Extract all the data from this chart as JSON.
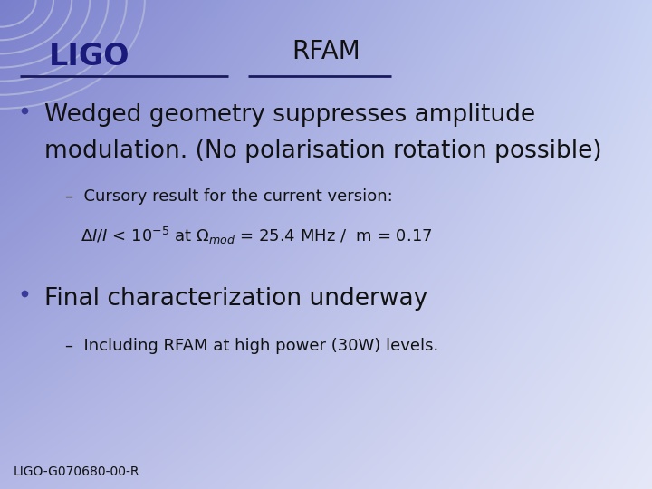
{
  "title": "RFAM",
  "ligo_text": "LIGO",
  "separator_color": "#1a1a5e",
  "bullet_color": "#3a3a99",
  "bullet1_main_line1": "Wedged geometry suppresses amplitude",
  "bullet1_main_line2": "modulation. (No polarisation rotation possible)",
  "bullet1_sub_line1": "–  Cursory result for the current version:",
  "bullet2_main": "Final characterization underway",
  "bullet2_sub": "–  Including RFAM at high power (30W) levels.",
  "footer": "LIGO-G070680-00-R",
  "title_fontsize": 20,
  "ligo_fontsize": 24,
  "bullet_main_fontsize": 19,
  "bullet_sub_fontsize": 13,
  "footer_fontsize": 10,
  "text_color": "#111111",
  "title_color": "#111111",
  "ligo_color": "#1a1a7a",
  "arc_color": "#aab0d8",
  "bg_tl": [
    0.48,
    0.5,
    0.8
  ],
  "bg_tr": [
    0.78,
    0.82,
    0.95
  ],
  "bg_bl": [
    0.7,
    0.72,
    0.9
  ],
  "bg_br": [
    0.9,
    0.91,
    0.97
  ]
}
